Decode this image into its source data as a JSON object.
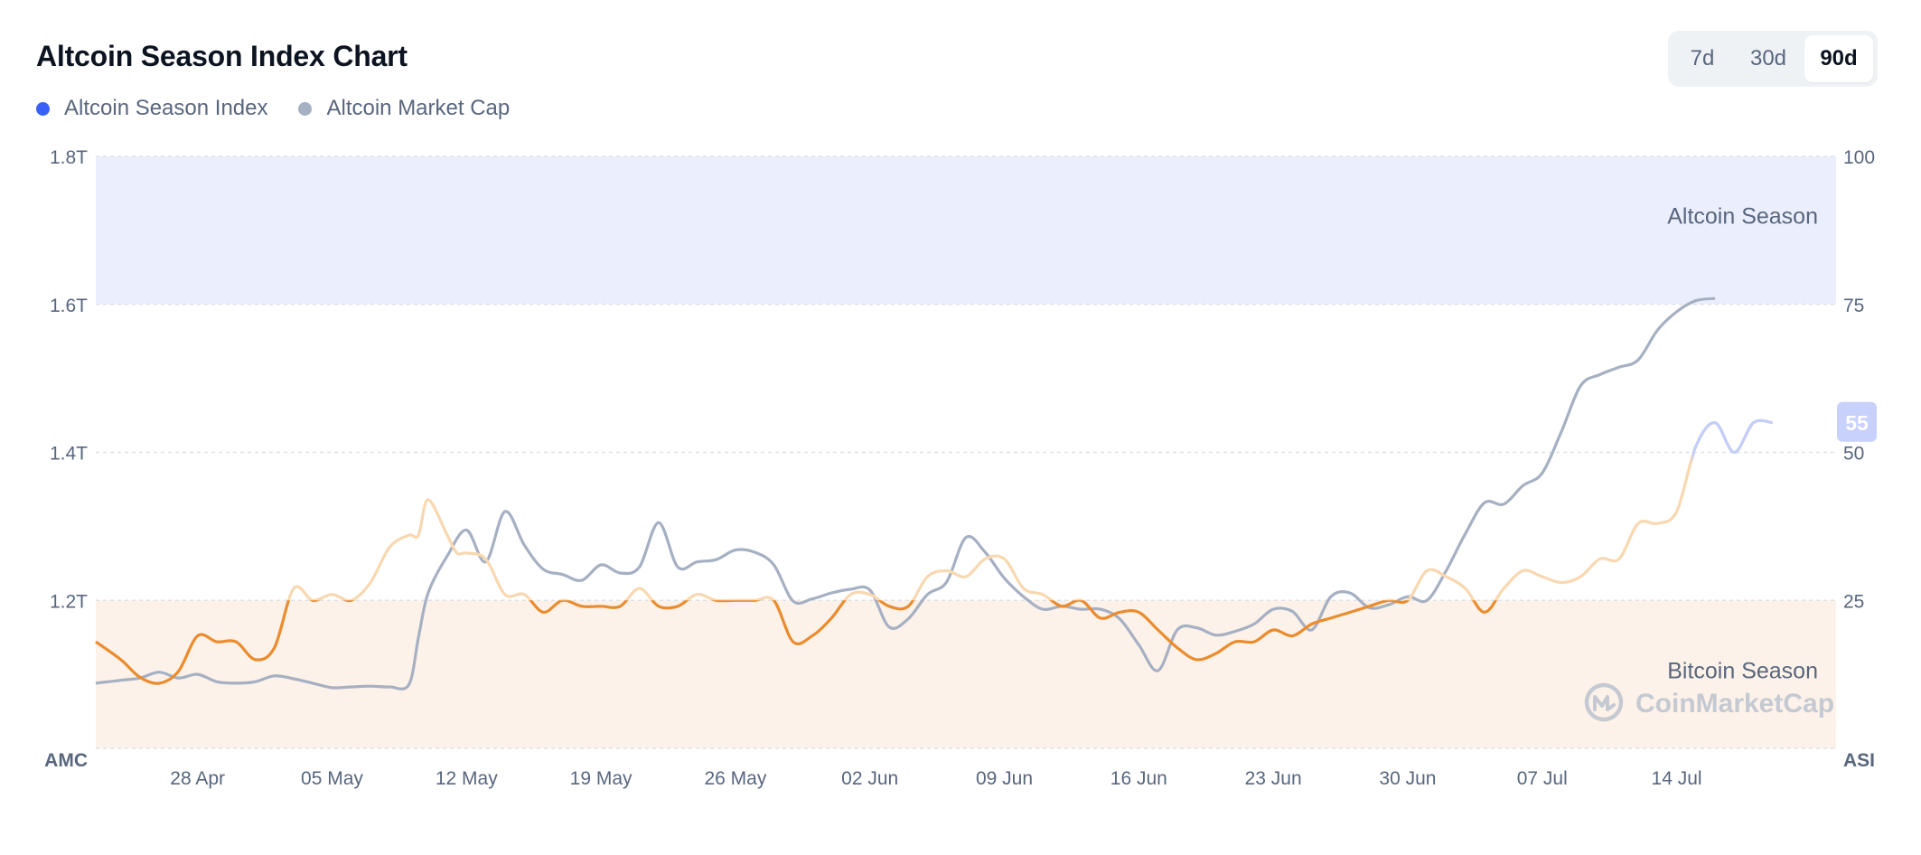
{
  "header": {
    "title": "Altcoin Season Index Chart",
    "tabs": [
      "7d",
      "30d",
      "90d"
    ],
    "active_tab": "90d"
  },
  "colors": {
    "asi_line": "#ea8c2e",
    "asi_line_faded": "#f8d8b0",
    "asi_line_altseason": "#c3cdfa",
    "mcap_line": "#a6b0c3",
    "legend_asi_dot": "#3861fb",
    "legend_mcap_dot": "#a6b0c3",
    "altcoin_zone": "#ebeffd",
    "bitcoin_zone": "#fdf2e9",
    "badge": "#c7d1fb"
  },
  "watermark": {
    "icon": "coinmarketcap-logo-icon",
    "text": "CoinMarketCap"
  },
  "chart_data": {
    "type": "line",
    "legend": [
      "Altcoin Season Index",
      "Altcoin Market Cap"
    ],
    "legend_placement": "top-left",
    "left_axis_label": "AMC",
    "right_axis_label": "ASI",
    "left_ticks": [
      "1.8T",
      "1.6T",
      "1.4T",
      "1.2T"
    ],
    "right_ticks": [
      "100",
      "75",
      "50",
      "25"
    ],
    "ylim_left_trillions": [
      1.0,
      1.8
    ],
    "ylim_right": [
      0,
      100
    ],
    "x_ticks": [
      "28 Apr",
      "05 May",
      "12 May",
      "19 May",
      "26 May",
      "02 Jun",
      "09 Jun",
      "16 Jun",
      "23 Jun",
      "30 Jun",
      "07 Jul",
      "14 Jul"
    ],
    "x_range_days_from_28_Apr": [
      -5.3,
      85.3
    ],
    "zones": [
      {
        "label": "Altcoin Season",
        "from": 75,
        "to": 100
      },
      {
        "label": "Bitcoin Season",
        "from": 0,
        "to": 25
      }
    ],
    "current_value_badge": "55",
    "series": [
      {
        "name": "Altcoin Season Index",
        "axis": "right",
        "points": [
          [
            -5.3,
            18
          ],
          [
            -4,
            15
          ],
          [
            -3,
            12
          ],
          [
            -2,
            11
          ],
          [
            -1,
            13
          ],
          [
            0,
            19
          ],
          [
            1,
            18
          ],
          [
            2,
            18
          ],
          [
            3,
            15
          ],
          [
            4,
            17
          ],
          [
            5,
            27
          ],
          [
            6,
            25
          ],
          [
            7,
            26
          ],
          [
            8,
            25
          ],
          [
            9,
            28
          ],
          [
            10,
            34
          ],
          [
            11,
            36
          ],
          [
            11.5,
            36
          ],
          [
            12,
            42
          ],
          [
            13,
            36
          ],
          [
            13.5,
            33
          ],
          [
            14,
            33
          ],
          [
            15,
            32
          ],
          [
            16,
            26
          ],
          [
            17,
            26
          ],
          [
            18,
            23
          ],
          [
            19,
            25
          ],
          [
            20,
            24
          ],
          [
            21,
            24
          ],
          [
            22,
            24
          ],
          [
            23,
            27
          ],
          [
            24,
            24
          ],
          [
            25,
            24
          ],
          [
            26,
            26
          ],
          [
            27,
            25
          ],
          [
            28,
            25
          ],
          [
            29,
            25
          ],
          [
            30,
            25
          ],
          [
            31,
            18
          ],
          [
            32,
            19
          ],
          [
            33,
            22
          ],
          [
            34,
            26
          ],
          [
            35,
            26
          ],
          [
            36,
            24
          ],
          [
            37,
            24
          ],
          [
            38,
            29
          ],
          [
            39,
            30
          ],
          [
            40,
            29
          ],
          [
            41,
            32
          ],
          [
            42,
            32
          ],
          [
            43,
            27
          ],
          [
            44,
            26
          ],
          [
            45,
            24
          ],
          [
            46,
            25
          ],
          [
            47,
            22
          ],
          [
            48,
            23
          ],
          [
            49,
            23
          ],
          [
            50,
            20
          ],
          [
            51,
            17
          ],
          [
            52,
            15
          ],
          [
            53,
            16
          ],
          [
            54,
            18
          ],
          [
            55,
            18
          ],
          [
            56,
            20
          ],
          [
            57,
            19
          ],
          [
            58,
            21
          ],
          [
            59,
            22
          ],
          [
            60,
            23
          ],
          [
            61,
            24
          ],
          [
            62,
            25
          ],
          [
            63,
            25
          ],
          [
            64,
            30
          ],
          [
            65,
            29
          ],
          [
            66,
            27
          ],
          [
            67,
            23
          ],
          [
            68,
            27
          ],
          [
            69,
            30
          ],
          [
            70,
            29
          ],
          [
            71,
            28
          ],
          [
            72,
            29
          ],
          [
            73,
            32
          ],
          [
            74,
            32
          ],
          [
            75,
            38
          ],
          [
            76,
            38
          ],
          [
            77,
            40
          ],
          [
            78,
            51
          ],
          [
            79,
            55
          ],
          [
            80,
            50
          ],
          [
            81,
            55
          ],
          [
            82,
            55
          ]
        ]
      },
      {
        "name": "Altcoin Market Cap",
        "axis": "left",
        "points": [
          [
            -5.3,
            1.088
          ],
          [
            -4,
            1.092
          ],
          [
            -3,
            1.095
          ],
          [
            -2,
            1.103
          ],
          [
            -1,
            1.095
          ],
          [
            0,
            1.1
          ],
          [
            1,
            1.09
          ],
          [
            2,
            1.088
          ],
          [
            3,
            1.09
          ],
          [
            4,
            1.098
          ],
          [
            5,
            1.094
          ],
          [
            6,
            1.088
          ],
          [
            7,
            1.082
          ],
          [
            8,
            1.083
          ],
          [
            9,
            1.084
          ],
          [
            10,
            1.083
          ],
          [
            11,
            1.086
          ],
          [
            11.5,
            1.15
          ],
          [
            12,
            1.21
          ],
          [
            13,
            1.26
          ],
          [
            14,
            1.295
          ],
          [
            15,
            1.252
          ],
          [
            16,
            1.32
          ],
          [
            17,
            1.275
          ],
          [
            18,
            1.242
          ],
          [
            19,
            1.235
          ],
          [
            20,
            1.227
          ],
          [
            21,
            1.248
          ],
          [
            22,
            1.237
          ],
          [
            23,
            1.245
          ],
          [
            24,
            1.305
          ],
          [
            25,
            1.245
          ],
          [
            26,
            1.252
          ],
          [
            27,
            1.255
          ],
          [
            28,
            1.268
          ],
          [
            29,
            1.265
          ],
          [
            30,
            1.248
          ],
          [
            31,
            1.199
          ],
          [
            32,
            1.202
          ],
          [
            33,
            1.21
          ],
          [
            34,
            1.215
          ],
          [
            35,
            1.214
          ],
          [
            36,
            1.164
          ],
          [
            37,
            1.175
          ],
          [
            38,
            1.208
          ],
          [
            39,
            1.225
          ],
          [
            40,
            1.285
          ],
          [
            41,
            1.265
          ],
          [
            42,
            1.23
          ],
          [
            43,
            1.205
          ],
          [
            44,
            1.188
          ],
          [
            45,
            1.192
          ],
          [
            46,
            1.188
          ],
          [
            47,
            1.188
          ],
          [
            48,
            1.175
          ],
          [
            49,
            1.14
          ],
          [
            50,
            1.105
          ],
          [
            51,
            1.16
          ],
          [
            52,
            1.163
          ],
          [
            53,
            1.153
          ],
          [
            54,
            1.158
          ],
          [
            55,
            1.168
          ],
          [
            56,
            1.188
          ],
          [
            57,
            1.185
          ],
          [
            58,
            1.16
          ],
          [
            59,
            1.205
          ],
          [
            60,
            1.21
          ],
          [
            61,
            1.19
          ],
          [
            62,
            1.194
          ],
          [
            63,
            1.205
          ],
          [
            64,
            1.2
          ],
          [
            65,
            1.24
          ],
          [
            66,
            1.29
          ],
          [
            67,
            1.332
          ],
          [
            68,
            1.33
          ],
          [
            69,
            1.355
          ],
          [
            70,
            1.372
          ],
          [
            71,
            1.428
          ],
          [
            72,
            1.49
          ],
          [
            73,
            1.505
          ],
          [
            74,
            1.515
          ],
          [
            75,
            1.525
          ],
          [
            76,
            1.565
          ],
          [
            77,
            1.59
          ],
          [
            78,
            1.605
          ],
          [
            79,
            1.608
          ]
        ]
      }
    ]
  }
}
